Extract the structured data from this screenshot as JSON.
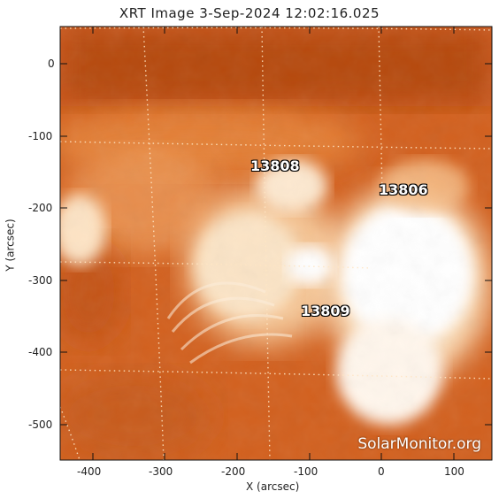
{
  "title": "XRT Image  3-Sep-2024 12:02:16.025",
  "watermark": "SolarMonitor.org",
  "axes": {
    "x_label": "X (arcsec)",
    "y_label": "Y (arcsec)",
    "x_ticks": [
      "-400",
      "-300",
      "-200",
      "-100",
      "0",
      "100"
    ],
    "y_ticks": [
      "0",
      "-100",
      "-200",
      "-300",
      "-400",
      "-500"
    ]
  },
  "regions": [
    {
      "id": "13808",
      "label": "13808"
    },
    {
      "id": "13806",
      "label": "13806"
    },
    {
      "id": "13809",
      "label": "13809"
    }
  ],
  "colors": {
    "background": "#ffffff",
    "sun_dark": "#b5460b",
    "sun_mid": "#e07a2a",
    "sun_bright": "#fbe2c2",
    "grid": "#ffe8c8"
  }
}
